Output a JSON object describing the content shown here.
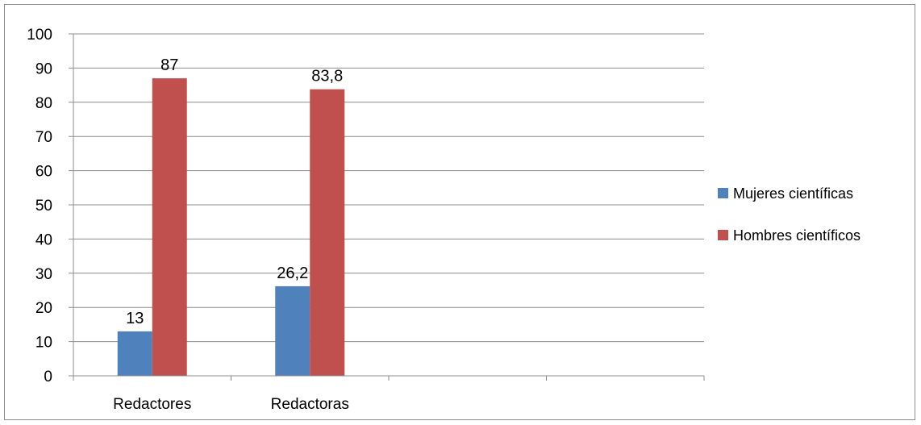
{
  "chart_data": {
    "type": "bar",
    "categories": [
      "Redactores",
      "Redactoras",
      "",
      ""
    ],
    "series": [
      {
        "name": "Mujeres científicas",
        "values": [
          13,
          26.2,
          null,
          null
        ],
        "labels": [
          "13",
          "26,2",
          "",
          ""
        ],
        "color": "#4f81bd"
      },
      {
        "name": "Hombres científicos",
        "values": [
          87,
          83.8,
          null,
          null
        ],
        "labels": [
          "87",
          "83,8",
          "",
          ""
        ],
        "color": "#c0504d"
      }
    ],
    "title": "",
    "xlabel": "",
    "ylabel": "",
    "ylim": [
      0,
      100
    ],
    "yticks": [
      0,
      10,
      20,
      30,
      40,
      50,
      60,
      70,
      80,
      90,
      100
    ],
    "grid": true,
    "legend_position": "right"
  }
}
